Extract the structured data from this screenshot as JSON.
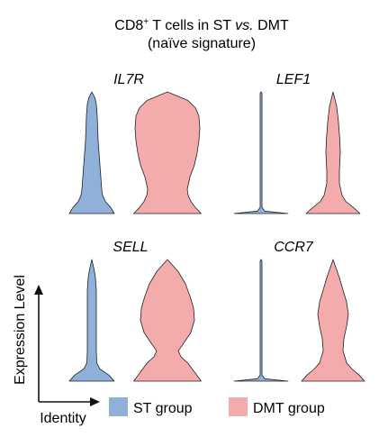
{
  "title": {
    "prefix": "CD8",
    "superscript": "+",
    "middle": " T cells in ST ",
    "italic": "vs.",
    "suffix": " DMT",
    "line2": "(naïve signature)"
  },
  "colors": {
    "st": "#8FB0D8",
    "dmt": "#F4ABAB",
    "outline": "#222222",
    "text": "#111111"
  },
  "axes_legend": {
    "y_label": "Expression Level",
    "x_label": "Identity"
  },
  "legend": {
    "items": [
      {
        "label": "ST group",
        "color": "#8FB0D8"
      },
      {
        "label": "DMT group",
        "color": "#F4ABAB"
      }
    ]
  },
  "chart_data": {
    "type": "violin",
    "series_names": [
      "ST group",
      "DMT group"
    ],
    "panels": [
      {
        "gene": "IL7R",
        "violins": [
          {
            "group": "ST group",
            "profile": [
              [
                0,
                0.5
              ],
              [
                0.05,
                0.42
              ],
              [
                0.1,
                0.3
              ],
              [
                0.15,
                0.24
              ],
              [
                0.2,
                0.22
              ],
              [
                0.25,
                0.21
              ],
              [
                0.3,
                0.2
              ],
              [
                0.4,
                0.18
              ],
              [
                0.5,
                0.16
              ],
              [
                0.6,
                0.14
              ],
              [
                0.7,
                0.13
              ],
              [
                0.8,
                0.12
              ],
              [
                0.9,
                0.1
              ],
              [
                0.95,
                0.07
              ],
              [
                1,
                0
              ]
            ]
          },
          {
            "group": "DMT group",
            "profile": [
              [
                0,
                0.75
              ],
              [
                0.05,
                0.62
              ],
              [
                0.1,
                0.52
              ],
              [
                0.15,
                0.46
              ],
              [
                0.2,
                0.44
              ],
              [
                0.3,
                0.5
              ],
              [
                0.4,
                0.6
              ],
              [
                0.5,
                0.66
              ],
              [
                0.6,
                0.7
              ],
              [
                0.7,
                0.72
              ],
              [
                0.8,
                0.7
              ],
              [
                0.87,
                0.62
              ],
              [
                0.93,
                0.45
              ],
              [
                1,
                0
              ]
            ]
          }
        ]
      },
      {
        "gene": "LEF1",
        "violins": [
          {
            "group": "ST group",
            "profile": [
              [
                0,
                0.6
              ],
              [
                0.02,
                0.08
              ],
              [
                0.05,
                0.02
              ],
              [
                0.99,
                0.02
              ],
              [
                1,
                0
              ]
            ]
          },
          {
            "group": "DMT group",
            "profile": [
              [
                0,
                0.6
              ],
              [
                0.05,
                0.45
              ],
              [
                0.1,
                0.28
              ],
              [
                0.15,
                0.2
              ],
              [
                0.25,
                0.14
              ],
              [
                0.35,
                0.14
              ],
              [
                0.5,
                0.16
              ],
              [
                0.6,
                0.15
              ],
              [
                0.75,
                0.12
              ],
              [
                0.88,
                0.08
              ],
              [
                1,
                0
              ]
            ]
          }
        ]
      },
      {
        "gene": "SELL",
        "violins": [
          {
            "group": "ST group",
            "profile": [
              [
                0,
                0.5
              ],
              [
                0.05,
                0.38
              ],
              [
                0.1,
                0.18
              ],
              [
                0.15,
                0.11
              ],
              [
                0.25,
                0.1
              ],
              [
                0.4,
                0.1
              ],
              [
                0.6,
                0.1
              ],
              [
                0.75,
                0.1
              ],
              [
                0.85,
                0.08
              ],
              [
                0.92,
                0.05
              ],
              [
                1,
                0
              ]
            ]
          },
          {
            "group": "DMT group",
            "profile": [
              [
                0,
                0.75
              ],
              [
                0.05,
                0.65
              ],
              [
                0.1,
                0.55
              ],
              [
                0.15,
                0.45
              ],
              [
                0.2,
                0.3
              ],
              [
                0.25,
                0.24
              ],
              [
                0.3,
                0.34
              ],
              [
                0.4,
                0.52
              ],
              [
                0.5,
                0.6
              ],
              [
                0.6,
                0.58
              ],
              [
                0.7,
                0.5
              ],
              [
                0.8,
                0.4
              ],
              [
                0.9,
                0.24
              ],
              [
                1,
                0
              ]
            ]
          }
        ]
      },
      {
        "gene": "CCR7",
        "violins": [
          {
            "group": "ST group",
            "profile": [
              [
                0,
                0.6
              ],
              [
                0.02,
                0.08
              ],
              [
                0.05,
                0.02
              ],
              [
                0.99,
                0.02
              ],
              [
                1,
                0
              ]
            ]
          },
          {
            "group": "DMT group",
            "profile": [
              [
                0,
                0.7
              ],
              [
                0.05,
                0.58
              ],
              [
                0.1,
                0.42
              ],
              [
                0.15,
                0.3
              ],
              [
                0.25,
                0.22
              ],
              [
                0.35,
                0.24
              ],
              [
                0.45,
                0.3
              ],
              [
                0.55,
                0.34
              ],
              [
                0.65,
                0.3
              ],
              [
                0.75,
                0.22
              ],
              [
                0.85,
                0.14
              ],
              [
                1,
                0
              ]
            ]
          }
        ]
      }
    ]
  }
}
